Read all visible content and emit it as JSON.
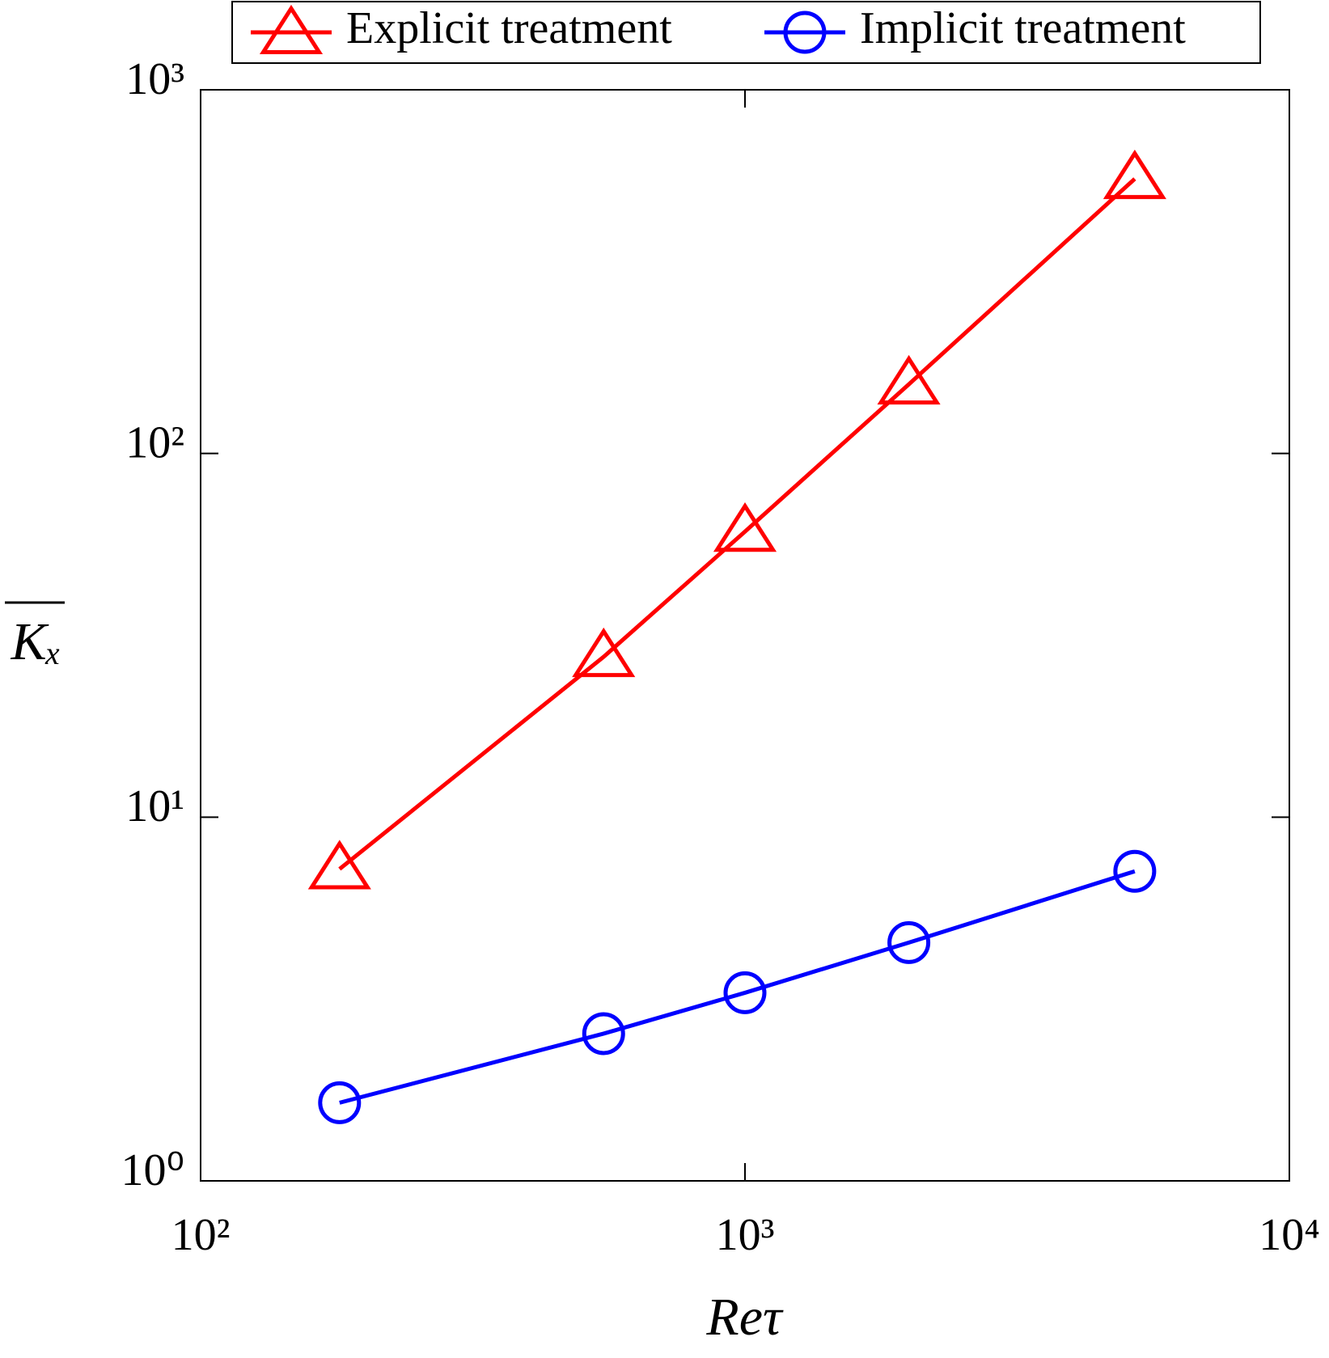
{
  "chart_data": {
    "type": "line",
    "xlabel": "Reτ",
    "ylabel": "Kₓ",
    "x": [
      180,
      550,
      1000,
      2000,
      5200
    ],
    "series": [
      {
        "name": "Explicit treatment",
        "color": "#ff0000",
        "marker": "triangle",
        "values": [
          7.2,
          27.6,
          61,
          155,
          569
        ]
      },
      {
        "name": "Implicit treatment",
        "color": "#0000ff",
        "marker": "circle",
        "values": [
          1.64,
          2.54,
          3.29,
          4.52,
          7.1
        ]
      }
    ],
    "xscale": "log",
    "yscale": "log",
    "xlim": [
      100,
      10000
    ],
    "ylim": [
      1,
      1000
    ],
    "xticks": [
      {
        "value": 100,
        "label": "10²"
      },
      {
        "value": 1000,
        "label": "10³"
      },
      {
        "value": 10000,
        "label": "10⁴"
      }
    ],
    "yticks": [
      {
        "value": 1,
        "label": "10⁰"
      },
      {
        "value": 10,
        "label": "10¹"
      },
      {
        "value": 100,
        "label": "10²"
      },
      {
        "value": 1000,
        "label": "10³"
      }
    ],
    "grid": false,
    "legend": "top"
  }
}
